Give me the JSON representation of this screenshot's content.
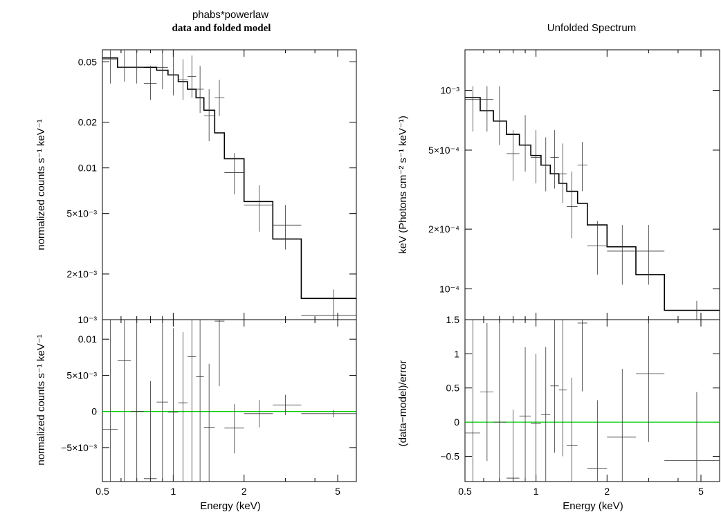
{
  "chart_data": [
    {
      "type": "line",
      "panel": "left-top",
      "title": "phabs*powerlaw",
      "subtitle": "data and folded model",
      "xlabel": "",
      "ylabel": "normalized counts s⁻¹ keV⁻¹",
      "xscale": "log",
      "yscale": "log",
      "xlim": [
        0.5,
        6.0
      ],
      "ylim": [
        0.001,
        0.06
      ],
      "y_ticks": [
        {
          "value": 0.05,
          "label": "0.05"
        },
        {
          "value": 0.02,
          "label": "0.02"
        },
        {
          "value": 0.01,
          "label": "0.01"
        },
        {
          "value": 0.005,
          "label": "5×10⁻³"
        },
        {
          "value": 0.002,
          "label": "2×10⁻³"
        },
        {
          "value": 0.001,
          "label": "10⁻³"
        }
      ],
      "grid": false,
      "model": [
        {
          "x0": 0.5,
          "x1": 0.58,
          "y": 0.053
        },
        {
          "x0": 0.58,
          "x1": 0.66,
          "y": 0.046
        },
        {
          "x0": 0.66,
          "x1": 0.75,
          "y": 0.046
        },
        {
          "x0": 0.75,
          "x1": 0.85,
          "y": 0.046
        },
        {
          "x0": 0.85,
          "x1": 0.95,
          "y": 0.044
        },
        {
          "x0": 0.95,
          "x1": 1.05,
          "y": 0.041
        },
        {
          "x0": 1.05,
          "x1": 1.15,
          "y": 0.037
        },
        {
          "x0": 1.15,
          "x1": 1.25,
          "y": 0.033
        },
        {
          "x0": 1.25,
          "x1": 1.35,
          "y": 0.029
        },
        {
          "x0": 1.35,
          "x1": 1.5,
          "y": 0.024
        },
        {
          "x0": 1.5,
          "x1": 1.65,
          "y": 0.017
        },
        {
          "x0": 1.65,
          "x1": 2.0,
          "y": 0.0115
        },
        {
          "x0": 2.0,
          "x1": 2.65,
          "y": 0.006
        },
        {
          "x0": 2.65,
          "x1": 3.5,
          "y": 0.0034
        },
        {
          "x0": 3.5,
          "x1": 6.0,
          "y": 0.00138
        }
      ],
      "data": [
        {
          "x": 0.54,
          "xlo": 0.5,
          "xhi": 0.58,
          "y": 0.052,
          "ylo": 0.036,
          "yhi": 0.06
        },
        {
          "x": 0.62,
          "xlo": 0.58,
          "xhi": 0.66,
          "y": 0.046,
          "ylo": 0.037,
          "yhi": 0.06
        },
        {
          "x": 0.7,
          "xlo": 0.66,
          "xhi": 0.75,
          "y": 0.046,
          "ylo": 0.036,
          "yhi": 0.06
        },
        {
          "x": 0.8,
          "xlo": 0.75,
          "xhi": 0.85,
          "y": 0.036,
          "ylo": 0.028,
          "yhi": 0.047
        },
        {
          "x": 0.9,
          "xlo": 0.85,
          "xhi": 0.95,
          "y": 0.046,
          "ylo": 0.033,
          "yhi": 0.06
        },
        {
          "x": 1.0,
          "xlo": 0.95,
          "xhi": 1.05,
          "y": 0.041,
          "ylo": 0.03,
          "yhi": 0.054
        },
        {
          "x": 1.1,
          "xlo": 1.05,
          "xhi": 1.15,
          "y": 0.038,
          "ylo": 0.028,
          "yhi": 0.052
        },
        {
          "x": 1.2,
          "xlo": 1.15,
          "xhi": 1.25,
          "y": 0.04,
          "ylo": 0.029,
          "yhi": 0.055
        },
        {
          "x": 1.3,
          "xlo": 1.25,
          "xhi": 1.35,
          "y": 0.033,
          "ylo": 0.023,
          "yhi": 0.047
        },
        {
          "x": 1.42,
          "xlo": 1.35,
          "xhi": 1.5,
          "y": 0.022,
          "ylo": 0.015,
          "yhi": 0.033
        },
        {
          "x": 1.57,
          "xlo": 1.5,
          "xhi": 1.65,
          "y": 0.029,
          "ylo": 0.022,
          "yhi": 0.038
        },
        {
          "x": 1.82,
          "xlo": 1.65,
          "xhi": 2.0,
          "y": 0.0093,
          "ylo": 0.0067,
          "yhi": 0.0125
        },
        {
          "x": 2.32,
          "xlo": 2.0,
          "xhi": 2.65,
          "y": 0.0057,
          "ylo": 0.0038,
          "yhi": 0.0077
        },
        {
          "x": 3.0,
          "xlo": 2.65,
          "xhi": 3.5,
          "y": 0.0042,
          "ylo": 0.0029,
          "yhi": 0.0057
        },
        {
          "x": 4.8,
          "xlo": 3.5,
          "xhi": 6.0,
          "y": 0.00107,
          "ylo": 0.001,
          "yhi": 0.00158
        }
      ]
    },
    {
      "type": "scatter",
      "panel": "left-bottom",
      "xlabel": "Energy (keV)",
      "ylabel": "normalized counts s⁻¹ keV⁻¹",
      "xscale": "log",
      "yscale": "linear",
      "xlim": [
        0.5,
        6.0
      ],
      "ylim": [
        -0.0097,
        0.0127
      ],
      "x_ticks": [
        {
          "value": 0.5,
          "label": "0.5"
        },
        {
          "value": 1,
          "label": "1"
        },
        {
          "value": 2,
          "label": "2"
        },
        {
          "value": 5,
          "label": "5"
        }
      ],
      "y_ticks": [
        {
          "value": 0.01,
          "label": "0.01"
        },
        {
          "value": 0.005,
          "label": "5×10⁻³"
        },
        {
          "value": 0,
          "label": "0"
        },
        {
          "value": -0.005,
          "label": "−5×10⁻³"
        }
      ],
      "reference_line": {
        "y": 0,
        "color": "#00cc00"
      },
      "data": [
        {
          "x": 0.54,
          "xlo": 0.5,
          "xhi": 0.58,
          "y": -0.0025,
          "ylo": -0.0097,
          "yhi": 0.0127
        },
        {
          "x": 0.62,
          "xlo": 0.58,
          "xhi": 0.66,
          "y": 0.007,
          "ylo": -0.0097,
          "yhi": 0.0127
        },
        {
          "x": 0.7,
          "xlo": 0.66,
          "xhi": 0.75,
          "y": 0.0,
          "ylo": -0.0097,
          "yhi": 0.0127
        },
        {
          "x": 0.8,
          "xlo": 0.75,
          "xhi": 0.85,
          "y": -0.0093,
          "ylo": -0.0097,
          "yhi": 0.0042
        },
        {
          "x": 0.9,
          "xlo": 0.85,
          "xhi": 0.95,
          "y": 0.0013,
          "ylo": -0.0097,
          "yhi": 0.0127
        },
        {
          "x": 1.0,
          "xlo": 0.95,
          "xhi": 1.05,
          "y": -0.0001,
          "ylo": -0.0097,
          "yhi": 0.0115
        },
        {
          "x": 1.1,
          "xlo": 1.05,
          "xhi": 1.15,
          "y": 0.0012,
          "ylo": -0.0097,
          "yhi": 0.011
        },
        {
          "x": 1.2,
          "xlo": 1.15,
          "xhi": 1.25,
          "y": 0.0076,
          "ylo": -0.0097,
          "yhi": 0.0127
        },
        {
          "x": 1.3,
          "xlo": 1.25,
          "xhi": 1.35,
          "y": 0.0048,
          "ylo": -0.0097,
          "yhi": 0.0127
        },
        {
          "x": 1.42,
          "xlo": 1.35,
          "xhi": 1.5,
          "y": -0.0022,
          "ylo": -0.0097,
          "yhi": 0.0066
        },
        {
          "x": 1.57,
          "xlo": 1.5,
          "xhi": 1.65,
          "y": 0.0125,
          "ylo": 0.0035,
          "yhi": 0.0127
        },
        {
          "x": 1.82,
          "xlo": 1.65,
          "xhi": 2.0,
          "y": -0.0023,
          "ylo": -0.0058,
          "yhi": 0.001
        },
        {
          "x": 2.32,
          "xlo": 2.0,
          "xhi": 2.65,
          "y": -0.0003,
          "ylo": -0.0022,
          "yhi": 0.0016
        },
        {
          "x": 3.0,
          "xlo": 2.65,
          "xhi": 3.5,
          "y": 0.0009,
          "ylo": -0.0005,
          "yhi": 0.0023
        },
        {
          "x": 4.8,
          "xlo": 3.5,
          "xhi": 6.0,
          "y": -0.0003,
          "ylo": -0.0008,
          "yhi": 0.0002
        }
      ]
    },
    {
      "type": "line",
      "panel": "right-top",
      "title": "Unfolded Spectrum",
      "xlabel": "",
      "ylabel": "keV (Photons cm⁻² s⁻¹ keV⁻¹)",
      "xscale": "log",
      "yscale": "log",
      "xlim": [
        0.5,
        6.0
      ],
      "ylim": [
        7e-05,
        0.0016
      ],
      "y_ticks": [
        {
          "value": 0.001,
          "label": "10⁻³"
        },
        {
          "value": 0.0005,
          "label": "5×10⁻⁴"
        },
        {
          "value": 0.0002,
          "label": "2×10⁻⁴"
        },
        {
          "value": 0.0001,
          "label": "10⁻⁴"
        }
      ],
      "grid": false,
      "model": [
        {
          "x0": 0.5,
          "x1": 0.58,
          "y": 0.00092
        },
        {
          "x0": 0.58,
          "x1": 0.66,
          "y": 0.00079
        },
        {
          "x0": 0.66,
          "x1": 0.75,
          "y": 0.0007
        },
        {
          "x0": 0.75,
          "x1": 0.85,
          "y": 0.0006
        },
        {
          "x0": 0.85,
          "x1": 0.95,
          "y": 0.00053
        },
        {
          "x0": 0.95,
          "x1": 1.05,
          "y": 0.00047
        },
        {
          "x0": 1.05,
          "x1": 1.15,
          "y": 0.00042
        },
        {
          "x0": 1.15,
          "x1": 1.25,
          "y": 0.00038
        },
        {
          "x0": 1.25,
          "x1": 1.35,
          "y": 0.00034
        },
        {
          "x0": 1.35,
          "x1": 1.5,
          "y": 0.00031
        },
        {
          "x0": 1.5,
          "x1": 1.65,
          "y": 0.00027
        },
        {
          "x0": 1.65,
          "x1": 2.0,
          "y": 0.00021
        },
        {
          "x0": 2.0,
          "x1": 2.65,
          "y": 0.000163
        },
        {
          "x0": 2.65,
          "x1": 3.5,
          "y": 0.000118
        },
        {
          "x0": 3.5,
          "x1": 6.0,
          "y": 7.8e-05
        }
      ],
      "data": [
        {
          "x": 0.54,
          "xlo": 0.5,
          "xhi": 0.58,
          "y": 0.0009,
          "ylo": 0.00062,
          "yhi": 0.00105
        },
        {
          "x": 0.62,
          "xlo": 0.58,
          "xhi": 0.66,
          "y": 0.0009,
          "ylo": 0.00062,
          "yhi": 0.00105
        },
        {
          "x": 0.7,
          "xlo": 0.66,
          "xhi": 0.75,
          "y": 0.0007,
          "ylo": 0.00053,
          "yhi": 0.00105
        },
        {
          "x": 0.8,
          "xlo": 0.75,
          "xhi": 0.85,
          "y": 0.00048,
          "ylo": 0.00035,
          "yhi": 0.00063
        },
        {
          "x": 0.9,
          "xlo": 0.85,
          "xhi": 0.95,
          "y": 0.00053,
          "ylo": 0.00039,
          "yhi": 0.00075
        },
        {
          "x": 1.0,
          "xlo": 0.95,
          "xhi": 1.05,
          "y": 0.00046,
          "ylo": 0.00034,
          "yhi": 0.00063
        },
        {
          "x": 1.1,
          "xlo": 1.05,
          "xhi": 1.15,
          "y": 0.00042,
          "ylo": 0.00031,
          "yhi": 0.00058
        },
        {
          "x": 1.2,
          "xlo": 1.15,
          "xhi": 1.25,
          "y": 0.00046,
          "ylo": 0.00032,
          "yhi": 0.00063
        },
        {
          "x": 1.3,
          "xlo": 1.25,
          "xhi": 1.35,
          "y": 0.00038,
          "ylo": 0.00027,
          "yhi": 0.00054
        },
        {
          "x": 1.42,
          "xlo": 1.35,
          "xhi": 1.5,
          "y": 0.00026,
          "ylo": 0.00018,
          "yhi": 0.00039
        },
        {
          "x": 1.57,
          "xlo": 1.5,
          "xhi": 1.65,
          "y": 0.00042,
          "ylo": 0.00031,
          "yhi": 0.00055
        },
        {
          "x": 1.82,
          "xlo": 1.65,
          "xhi": 2.0,
          "y": 0.000165,
          "ylo": 0.000118,
          "yhi": 0.00022
        },
        {
          "x": 2.32,
          "xlo": 2.0,
          "xhi": 2.65,
          "y": 0.000155,
          "ylo": 0.000105,
          "yhi": 0.00021
        },
        {
          "x": 3.0,
          "xlo": 2.65,
          "xhi": 3.5,
          "y": 0.000155,
          "ylo": 0.000105,
          "yhi": 0.00021
        },
        {
          "x": 4.8,
          "xlo": 3.5,
          "xhi": 6.0,
          "y": 7e-05,
          "ylo": 7e-05,
          "yhi": 8.7e-05
        }
      ]
    },
    {
      "type": "scatter",
      "panel": "right-bottom",
      "xlabel": "Energy (keV)",
      "ylabel": "(data−model)/error",
      "xscale": "log",
      "yscale": "linear",
      "xlim": [
        0.5,
        6.0
      ],
      "ylim": [
        -0.87,
        1.5
      ],
      "x_ticks": [
        {
          "value": 0.5,
          "label": "0.5"
        },
        {
          "value": 1,
          "label": "1"
        },
        {
          "value": 2,
          "label": "2"
        },
        {
          "value": 5,
          "label": "5"
        }
      ],
      "y_ticks": [
        {
          "value": 1.5,
          "label": "1.5"
        },
        {
          "value": 1,
          "label": "1"
        },
        {
          "value": 0.5,
          "label": "0.5"
        },
        {
          "value": 0,
          "label": "0"
        },
        {
          "value": -0.5,
          "label": "−0.5"
        }
      ],
      "reference_line": {
        "y": 0,
        "color": "#00cc00"
      },
      "data": [
        {
          "x": 0.54,
          "xlo": 0.5,
          "xhi": 0.58,
          "y": -0.16,
          "ylo": -0.87,
          "yhi": 1.5
        },
        {
          "x": 0.62,
          "xlo": 0.58,
          "xhi": 0.66,
          "y": 0.44,
          "ylo": -0.57,
          "yhi": 1.45
        },
        {
          "x": 0.7,
          "xlo": 0.66,
          "xhi": 0.75,
          "y": 0.0,
          "ylo": -0.87,
          "yhi": 1.5
        },
        {
          "x": 0.8,
          "xlo": 0.75,
          "xhi": 0.85,
          "y": -0.82,
          "ylo": -0.87,
          "yhi": 0.18
        },
        {
          "x": 0.9,
          "xlo": 0.85,
          "xhi": 0.95,
          "y": 0.09,
          "ylo": -0.87,
          "yhi": 1.1
        },
        {
          "x": 1.0,
          "xlo": 0.95,
          "xhi": 1.05,
          "y": -0.02,
          "ylo": -0.87,
          "yhi": 1.0
        },
        {
          "x": 1.1,
          "xlo": 1.05,
          "xhi": 1.15,
          "y": 0.11,
          "ylo": -0.87,
          "yhi": 1.1
        },
        {
          "x": 1.2,
          "xlo": 1.15,
          "xhi": 1.25,
          "y": 0.53,
          "ylo": -0.45,
          "yhi": 1.5
        },
        {
          "x": 1.3,
          "xlo": 1.25,
          "xhi": 1.35,
          "y": 0.47,
          "ylo": -0.5,
          "yhi": 1.5
        },
        {
          "x": 1.42,
          "xlo": 1.35,
          "xhi": 1.5,
          "y": -0.34,
          "ylo": -0.87,
          "yhi": 0.65
        },
        {
          "x": 1.57,
          "xlo": 1.5,
          "xhi": 1.65,
          "y": 1.45,
          "ylo": 0.45,
          "yhi": 1.5
        },
        {
          "x": 1.82,
          "xlo": 1.65,
          "xhi": 2.0,
          "y": -0.68,
          "ylo": -0.87,
          "yhi": 0.32
        },
        {
          "x": 2.32,
          "xlo": 2.0,
          "xhi": 2.65,
          "y": -0.22,
          "ylo": -0.87,
          "yhi": 0.78
        },
        {
          "x": 3.0,
          "xlo": 2.65,
          "xhi": 3.5,
          "y": 0.71,
          "ylo": -0.29,
          "yhi": 1.5
        },
        {
          "x": 4.8,
          "xlo": 3.5,
          "xhi": 6.0,
          "y": -0.56,
          "ylo": -0.87,
          "yhi": 0.44
        }
      ]
    }
  ]
}
